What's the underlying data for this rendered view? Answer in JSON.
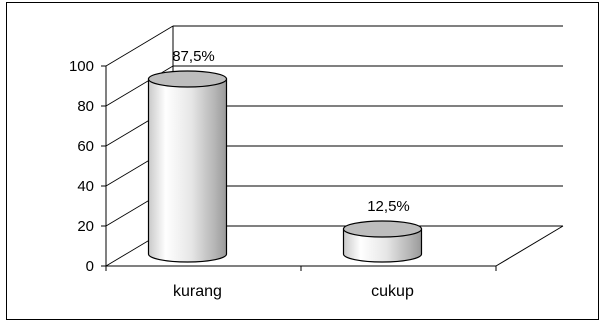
{
  "chart_data": {
    "type": "bar",
    "style": "3d-cylinder",
    "categories": [
      "kurang",
      "cukup"
    ],
    "values": [
      87.5,
      12.5
    ],
    "data_labels": [
      "87,5%",
      "12,5%"
    ],
    "title": "",
    "xlabel": "",
    "ylabel": "",
    "ylim": [
      0,
      100
    ],
    "yticks": [
      0,
      20,
      40,
      60,
      80,
      100
    ],
    "ytick_labels": [
      "0",
      "20",
      "40",
      "60",
      "80",
      "100"
    ],
    "grid": true,
    "legend": "none",
    "colors": {
      "cylinder_light": "#ffffff",
      "cylinder_mid": "#d8d8d8",
      "cylinder_dark": "#9a9a9a",
      "cylinder_top": "#bdbdbd",
      "gridline": "#000000",
      "frame": "#000000"
    }
  }
}
